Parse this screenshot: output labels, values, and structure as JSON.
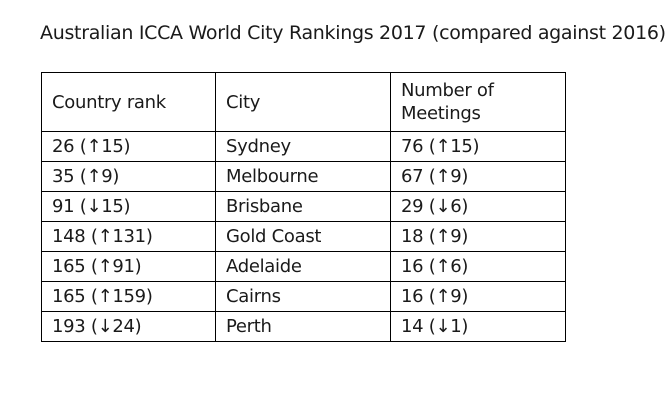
{
  "title": "Australian ICCA World City Rankings 2017 (compared against 2016)",
  "table": {
    "headers": {
      "country_rank": "Country rank",
      "city": "City",
      "meetings": "Number of Meetings"
    },
    "rows": [
      {
        "rank": "26 (↑15)",
        "city": "Sydney",
        "meetings": "76 (↑15)"
      },
      {
        "rank": "35 (↑9)",
        "city": "Melbourne",
        "meetings": "67 (↑9)"
      },
      {
        "rank": "91 (↓15)",
        "city": "Brisbane",
        "meetings": "29 (↓6)"
      },
      {
        "rank": "148 (↑131)",
        "city": "Gold Coast",
        "meetings": "18 (↑9)"
      },
      {
        "rank": "165 (↑91)",
        "city": "Adelaide",
        "meetings": "16 (↑6)"
      },
      {
        "rank": "165 (↑159)",
        "city": "Cairns",
        "meetings": "16 (↑9)"
      },
      {
        "rank": "193 (↓24)",
        "city": "Perth",
        "meetings": "14 (↓1)"
      }
    ]
  }
}
